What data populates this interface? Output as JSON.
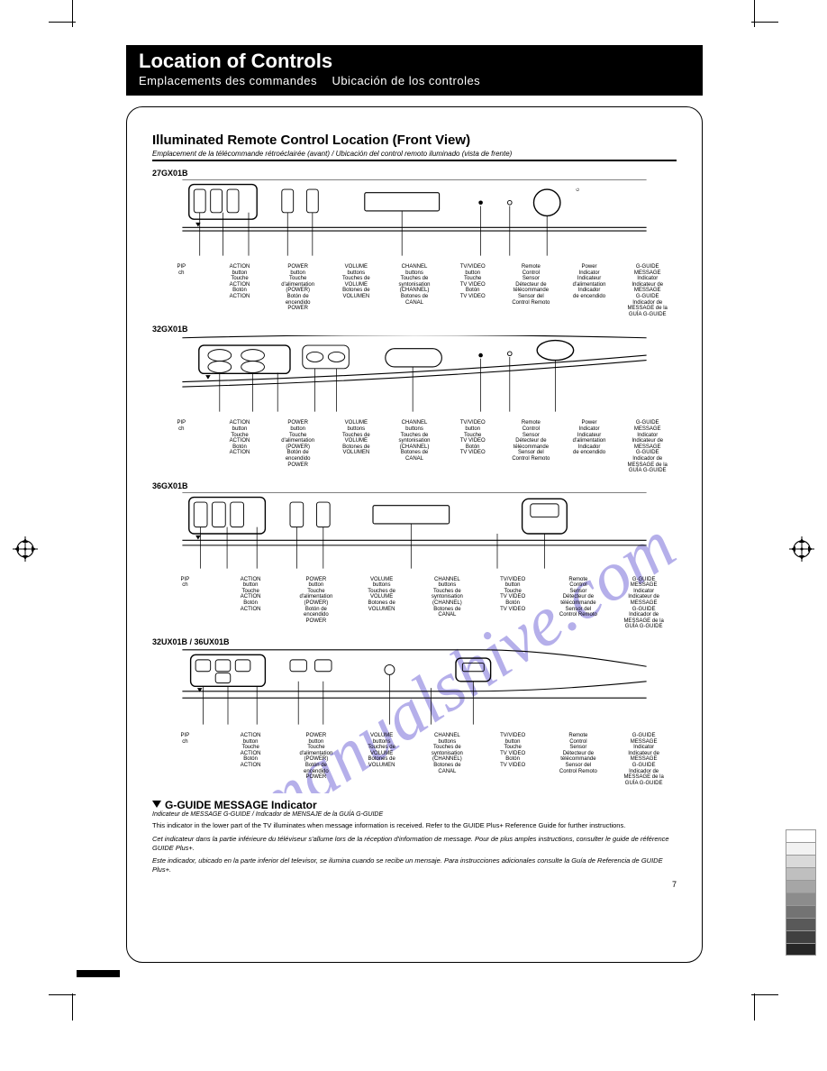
{
  "header": {
    "title": "Location of Controls",
    "subtitle_i": "Emplacements des commandes",
    "subtitle_ii": "Ubicación de los controles"
  },
  "section": {
    "title": "Illuminated Remote Control Location (Front View)",
    "sub": "Emplacement de la télécommande rétroéclairée (avant) / Ubicación del control remoto iluminado (vista de frente)"
  },
  "models": {
    "a": "27GX01B",
    "b": "32GX01B",
    "c": "36GX01B",
    "d": "32UX01B / 36UX01B"
  },
  "label_cols": {
    "pip": "PIP\nch",
    "action": "ACTION\nbutton\nTouche\nACTION\nBotón\nACTION",
    "power": "POWER\nbutton\nTouche\nd'alimentation\n(POWER)\nBotón de\nencendido\nPOWER",
    "volume": "VOLUME\nbuttons\nTouches de\nVOLUME\nBotones de\nVOLUMEN",
    "channel": "CHANNEL\nbuttons\nTouches de\nsyntonisation\n(CHANNEL)\nBotones de\nCANAL",
    "tvvideo": "TV/VIDEO\nbutton\nTouche\nTV VIDEO\nBotón\nTV VIDEO",
    "remote": "Remote\nControl\nSensor\nDétecteur de\ntélécommande\nSensor del\nControl Remoto",
    "powerind": "Power\nIndicator\nIndicateur\nd'alimentation\nIndicador\nde encendido",
    "gguide": "G-GUIDE\nMESSAGE\nIndicator\nIndicateur de\nMESSAGE\nG-GUIDE\nIndicador de\nMESSAGE de la\nGUÍA G-GUIDE"
  },
  "gguide": {
    "title": "G-GUIDE MESSAGE Indicator",
    "sub": "Indicateur de MESSAGE G-GUIDE / Indicador de MENSAJE de la GUÍA G-GUIDE",
    "p1": "This indicator in the lower part of the TV illuminates when message information is received. Refer to the GUIDE Plus+ Reference Guide for further instructions.",
    "p2": "Cet indicateur dans la partie inférieure du téléviseur s'allume lors de la réception d'information de message. Pour de plus amples instructions, consulter le guide de référence GUIDE Plus+.",
    "p3": "Este indicador, ubicado en la parte inferior del televisor, se ilumina cuando se recibe un mensaje. Para instrucciones adicionales consulte la Guía de Referencia de GUIDE Plus+."
  },
  "page_num": "7",
  "swatch_colors": [
    "#ffffff",
    "#f2f2f2",
    "#d9d9d9",
    "#bfbfbf",
    "#a6a6a6",
    "#8c8c8c",
    "#737373",
    "#595959",
    "#404040",
    "#262626"
  ],
  "watermark_color": "#7a6fd9"
}
